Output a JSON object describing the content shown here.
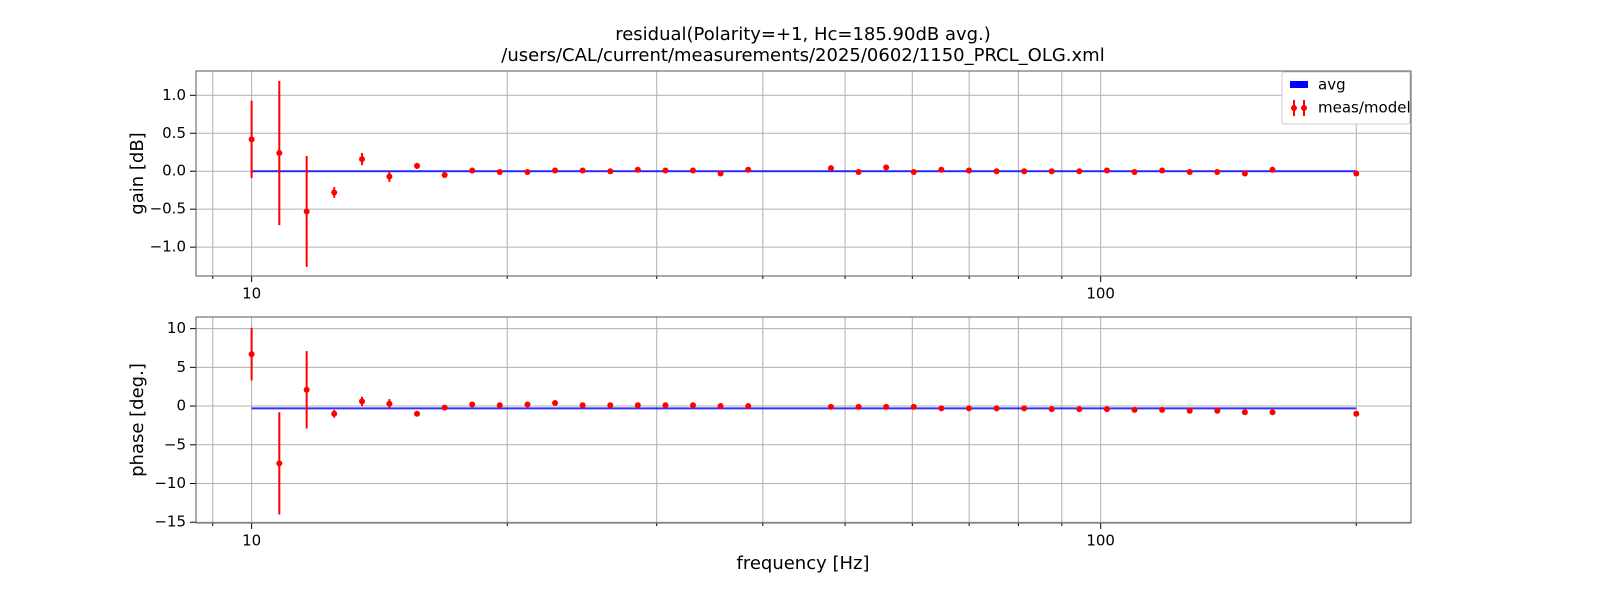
{
  "chart_data": [
    {
      "type": "errorbar",
      "title": "residual(Polarity=+1,  Hc=185.90dB avg.)",
      "subtitle": "/users/CAL/current/measurements/2025/0602/1150_PRCL_OLG.xml",
      "ylabel": "gain [dB]",
      "log_x": true,
      "grid": true,
      "legend": "upper right",
      "x": [
        10,
        10.78,
        11.61,
        12.51,
        13.49,
        14.53,
        15.66,
        16.88,
        18.19,
        19.6,
        21.13,
        22.77,
        24.54,
        26.45,
        28.5,
        30.72,
        33.1,
        35.67,
        38.45,
        48.12,
        51.86,
        55.89,
        60.24,
        64.92,
        69.96,
        75.4,
        81.26,
        87.57,
        94.37,
        101.71,
        109.61,
        118.13,
        127.31,
        137.2,
        147.86,
        159.35,
        200
      ],
      "xlim": [
        8.6,
        232
      ],
      "xticks": [
        10,
        100
      ],
      "xminor": [
        9,
        20,
        30,
        40,
        50,
        60,
        70,
        80,
        90,
        200
      ],
      "ylim": [
        -1.38,
        1.32
      ],
      "yticks": [
        {
          "value": -1,
          "label": "−1.0"
        },
        {
          "value": -0.5,
          "label": "−0.5"
        },
        {
          "value": 0,
          "label": "0.0"
        },
        0.5,
        {
          "value": 1,
          "label": "1.0"
        }
      ],
      "avg": {
        "name": "avg",
        "color": "#0000ff",
        "value": 0.0
      },
      "points": {
        "name": "meas/model",
        "color": "#ff0000",
        "values": [
          0.42,
          0.24,
          -0.53,
          -0.28,
          0.16,
          -0.07,
          0.07,
          -0.05,
          0.01,
          -0.01,
          -0.01,
          0.01,
          0.01,
          0.0,
          0.02,
          0.01,
          0.01,
          -0.03,
          0.02,
          0.04,
          -0.01,
          0.05,
          -0.01,
          0.02,
          0.01,
          0.0,
          0.0,
          0.0,
          0.0,
          0.01,
          -0.01,
          0.01,
          -0.01,
          -0.01,
          -0.03,
          0.02,
          -0.03
        ],
        "errors": [
          0.51,
          0.95,
          0.73,
          0.07,
          0.08,
          0.07,
          0.04,
          0.02,
          0.01,
          0.01,
          0.01,
          0.01,
          0.01,
          0.01,
          0.01,
          0.01,
          0.01,
          0.01,
          0.01,
          0.01,
          0.01,
          0.01,
          0.01,
          0.01,
          0.01,
          0.01,
          0.01,
          0.01,
          0.01,
          0.01,
          0.01,
          0.01,
          0.01,
          0.01,
          0.01,
          0.01,
          0.01
        ]
      }
    },
    {
      "type": "errorbar",
      "ylabel": "phase [deg.]",
      "xlabel": "frequency [Hz]",
      "log_x": true,
      "grid": true,
      "x": [
        10,
        10.78,
        11.61,
        12.51,
        13.49,
        14.53,
        15.66,
        16.88,
        18.19,
        19.6,
        21.13,
        22.77,
        24.54,
        26.45,
        28.5,
        30.72,
        33.1,
        35.67,
        38.45,
        48.12,
        51.86,
        55.89,
        60.24,
        64.92,
        69.96,
        75.4,
        81.26,
        87.57,
        94.37,
        101.71,
        109.61,
        118.13,
        127.31,
        137.2,
        147.86,
        159.35,
        200
      ],
      "xlim": [
        8.6,
        232
      ],
      "xticks": [
        10,
        100
      ],
      "xminor": [
        9,
        20,
        30,
        40,
        50,
        60,
        70,
        80,
        90,
        200
      ],
      "ylim": [
        -15.1,
        11.5
      ],
      "yticks": [
        {
          "value": -15,
          "label": "−15"
        },
        {
          "value": -10,
          "label": "−10"
        },
        {
          "value": -5,
          "label": "−5"
        },
        0,
        5,
        10
      ],
      "avg": {
        "color": "#0000ff",
        "value": -0.3
      },
      "points": {
        "color": "#ff0000",
        "values": [
          6.7,
          -7.4,
          2.1,
          -1.0,
          0.6,
          0.3,
          -1.0,
          -0.2,
          0.2,
          0.1,
          0.2,
          0.4,
          0.1,
          0.1,
          0.1,
          0.1,
          0.1,
          0.0,
          0.0,
          -0.1,
          -0.1,
          -0.1,
          -0.1,
          -0.3,
          -0.3,
          -0.3,
          -0.3,
          -0.4,
          -0.4,
          -0.4,
          -0.5,
          -0.5,
          -0.6,
          -0.6,
          -0.8,
          -0.8,
          -1.0
        ],
        "errors": [
          3.4,
          6.6,
          5.0,
          0.5,
          0.6,
          0.6,
          0.2,
          0.2,
          0.2,
          0.2,
          0.2,
          0.2,
          0.2,
          0.2,
          0.2,
          0.2,
          0.2,
          0.2,
          0.2,
          0.2,
          0.2,
          0.2,
          0.2,
          0.2,
          0.2,
          0.2,
          0.2,
          0.2,
          0.2,
          0.2,
          0.2,
          0.2,
          0.2,
          0.2,
          0.2,
          0.2,
          0.2
        ]
      }
    }
  ]
}
